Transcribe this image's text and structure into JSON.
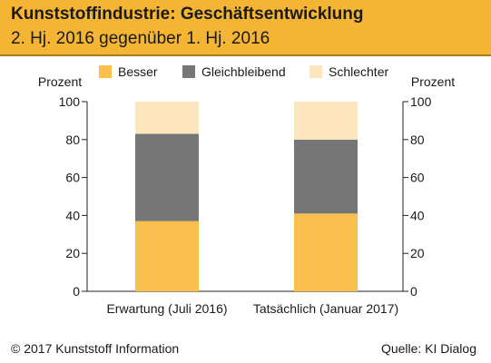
{
  "header": {
    "title": "Kunststoffindustrie: Geschäftsentwicklung",
    "subtitle": "2. Hj. 2016 gegenüber 1. Hj. 2016"
  },
  "footer": {
    "copyright": "© 2017 Kunststoff Information",
    "source": "Quelle: KI Dialog"
  },
  "chart_data": {
    "type": "bar",
    "stacked": true,
    "ylabel_left": "Prozent",
    "ylabel_right": "Prozent",
    "ylim": [
      0,
      100
    ],
    "yticks": [
      0,
      20,
      40,
      60,
      80,
      100
    ],
    "grid": false,
    "legend_position": "top",
    "categories": [
      "Erwartung (Juli 2016)",
      "Tatsächlich (Januar 2017)"
    ],
    "series": [
      {
        "name": "Besser",
        "values": [
          37,
          41
        ],
        "color": "#f9c04e"
      },
      {
        "name": "Gleichbleibend",
        "values": [
          46,
          39
        ],
        "color": "#767676"
      },
      {
        "name": "Schlechter",
        "values": [
          17,
          20
        ],
        "color": "#fde6bd"
      }
    ]
  }
}
